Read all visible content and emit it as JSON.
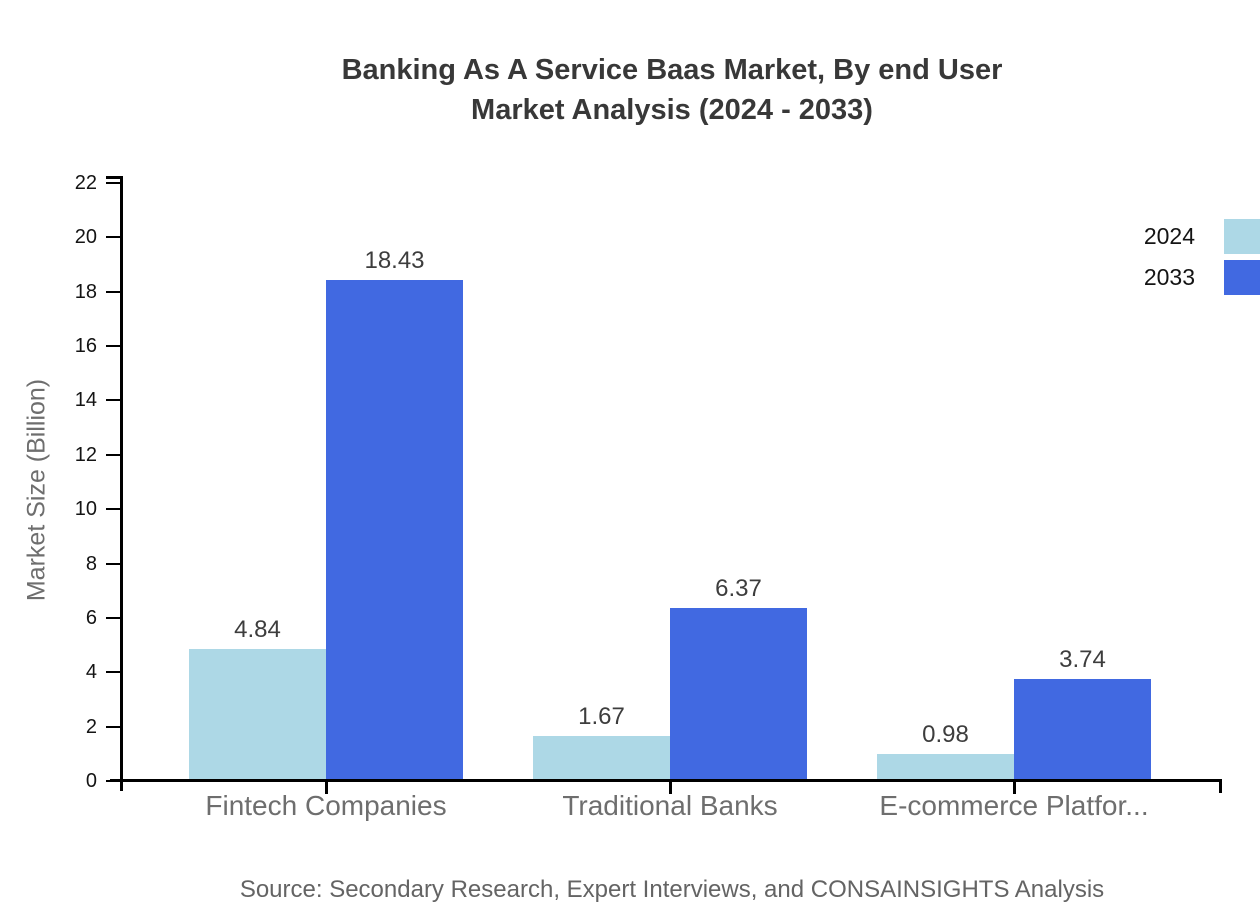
{
  "title": {
    "line1": "Banking As A Service Baas Market, By end User",
    "line2": "Market Analysis (2024 - 2033)"
  },
  "chart_data": {
    "type": "bar",
    "categories": [
      "Fintech Companies",
      "Traditional Banks",
      "E-commerce Platfor..."
    ],
    "series": [
      {
        "name": "2024",
        "color": "#ADD8E6",
        "values": [
          4.84,
          1.67,
          0.98
        ]
      },
      {
        "name": "2033",
        "color": "#4169E1",
        "values": [
          18.43,
          6.37,
          3.74
        ]
      }
    ],
    "xlabel": "",
    "ylabel": "Market Size (Billion)",
    "ylim": [
      0,
      22
    ],
    "yticks": [
      0,
      2,
      4,
      6,
      8,
      10,
      12,
      14,
      16,
      18,
      20,
      22
    ],
    "grid": false,
    "legend_position": "top-right",
    "bar_value_labels": true
  },
  "source_note": "Source: Secondary Research, Expert Interviews, and CONSAINSIGHTS Analysis"
}
